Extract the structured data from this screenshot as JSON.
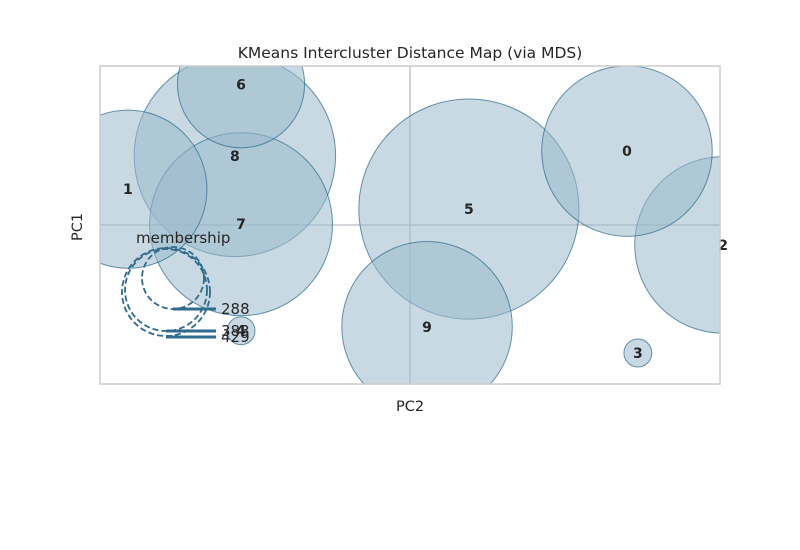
{
  "chart_data": {
    "type": "scatter",
    "title": "KMeans Intercluster Distance Map (via MDS)",
    "xlabel": "PC2",
    "ylabel": "PC1",
    "xlim": [
      -1.0,
      1.0
    ],
    "ylim": [
      -1.0,
      1.0
    ],
    "grid": true,
    "colors": {
      "bubble_fill": "#9ab9cc",
      "bubble_fill_opacity": 0.55,
      "bubble_stroke": "#2a6a8c",
      "axis_lines": "#b8bcc2",
      "frame": "#cccccc",
      "legend": "#2f6b8c"
    },
    "clusters": [
      {
        "label": "0",
        "x": 0.7,
        "y": 0.465,
        "r": 0.275
      },
      {
        "label": "1",
        "x": -0.91,
        "y": 0.225,
        "r": 0.255
      },
      {
        "label": "2",
        "x": 1.01,
        "y": -0.125,
        "r": 0.285
      },
      {
        "label": "3",
        "x": 0.735,
        "y": -0.805,
        "r": 0.045
      },
      {
        "label": "4",
        "x": -0.545,
        "y": -0.665,
        "r": 0.045
      },
      {
        "label": "5",
        "x": 0.19,
        "y": 0.1,
        "r": 0.355
      },
      {
        "label": "6",
        "x": -0.545,
        "y": 0.885,
        "r": 0.205
      },
      {
        "label": "7",
        "x": -0.545,
        "y": 0.005,
        "r": 0.295
      },
      {
        "label": "8",
        "x": -0.565,
        "y": 0.435,
        "r": 0.325
      },
      {
        "label": "9",
        "x": 0.055,
        "y": -0.64,
        "r": 0.275
      }
    ],
    "legend": {
      "title": "membership",
      "sizes": [
        "288",
        "383",
        "429"
      ]
    }
  }
}
